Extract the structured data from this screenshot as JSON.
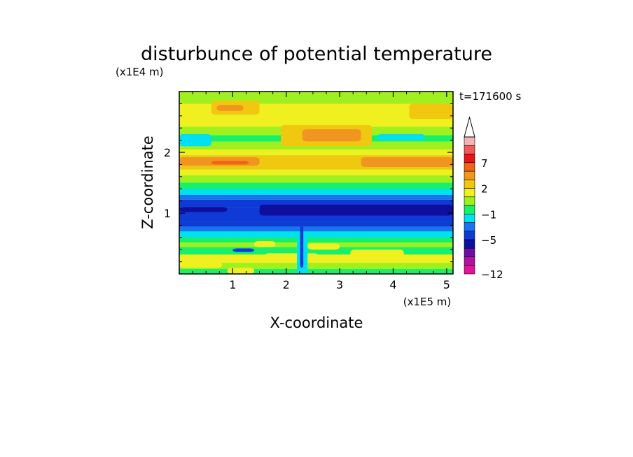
{
  "chart_data": {
    "type": "heatmap",
    "title": "disturbunce of potential temperature",
    "xlabel": "X-coordinate",
    "ylabel": "Z-coordinate",
    "x_unit": "(x1E5 m)",
    "y_unit": "(x1E4 m)",
    "annotation": "t=171600 s",
    "xlim": [
      0,
      5.12
    ],
    "ylim": [
      0,
      3.0
    ],
    "x_ticks": [
      1,
      2,
      3,
      4,
      5
    ],
    "x_tick_labels": [
      "1",
      "2",
      "3",
      "4",
      "5"
    ],
    "y_ticks": [
      1,
      2
    ],
    "y_tick_labels": [
      "1",
      "2"
    ],
    "grid": false,
    "colorbar": {
      "placement": "right",
      "levels": [
        -12,
        -11,
        -9,
        -7,
        -5,
        -3,
        -2,
        -1,
        0,
        1,
        2,
        3,
        5,
        7,
        9,
        11
      ],
      "colors": [
        "#e0139b",
        "#b0129f",
        "#6c0fa6",
        "#0f0f9f",
        "#0f3ad6",
        "#1a73f0",
        "#00e0f0",
        "#17f06a",
        "#a0f020",
        "#f0f020",
        "#f0c810",
        "#f09620",
        "#f06418",
        "#e61414",
        "#f05a5a",
        "#f5b4b4"
      ],
      "labels": [
        {
          "value": 7,
          "text": "7"
        },
        {
          "value": 2,
          "text": "2"
        },
        {
          "value": -1,
          "text": "−1"
        },
        {
          "value": -5,
          "text": "−5"
        },
        {
          "value": -12,
          "text": "−12"
        }
      ],
      "extend_top": true
    },
    "bands": [
      {
        "z0": 0.0,
        "z1": 0.08,
        "color": "#17f06a"
      },
      {
        "z0": 0.08,
        "z1": 0.18,
        "color": "#a0f020"
      },
      {
        "z0": 0.18,
        "z1": 0.32,
        "color": "#f0f020"
      },
      {
        "z0": 0.32,
        "z1": 0.44,
        "color": "#17f06a"
      },
      {
        "z0": 0.44,
        "z1": 0.52,
        "color": "#a0f020"
      },
      {
        "z0": 0.52,
        "z1": 0.6,
        "color": "#17f06a"
      },
      {
        "z0": 0.6,
        "z1": 0.7,
        "color": "#00e0f0"
      },
      {
        "z0": 0.7,
        "z1": 0.78,
        "color": "#1a73f0"
      },
      {
        "z0": 0.78,
        "z1": 0.86,
        "color": "#0f3ad6"
      },
      {
        "z0": 0.86,
        "z1": 1.1,
        "color": "#0f3ad6"
      },
      {
        "z0": 1.1,
        "z1": 1.22,
        "color": "#0f3ad6"
      },
      {
        "z0": 1.22,
        "z1": 1.3,
        "color": "#1a73f0"
      },
      {
        "z0": 1.3,
        "z1": 1.4,
        "color": "#00e0f0"
      },
      {
        "z0": 1.4,
        "z1": 1.5,
        "color": "#17f06a"
      },
      {
        "z0": 1.5,
        "z1": 1.62,
        "color": "#a0f020"
      },
      {
        "z0": 1.62,
        "z1": 1.72,
        "color": "#f0f020"
      },
      {
        "z0": 1.72,
        "z1": 1.95,
        "color": "#f0c810"
      },
      {
        "z0": 1.95,
        "z1": 2.05,
        "color": "#f0f020"
      },
      {
        "z0": 2.05,
        "z1": 2.18,
        "color": "#a0f020"
      },
      {
        "z0": 2.18,
        "z1": 2.28,
        "color": "#17f06a"
      },
      {
        "z0": 2.28,
        "z1": 2.42,
        "color": "#a0f020"
      },
      {
        "z0": 2.42,
        "z1": 2.58,
        "color": "#f0f020"
      },
      {
        "z0": 2.58,
        "z1": 2.8,
        "color": "#f0f020"
      },
      {
        "z0": 2.8,
        "z1": 3.0,
        "color": "#a0f020"
      }
    ],
    "patches": [
      {
        "x0": 0.0,
        "x1": 1.5,
        "z0": 1.78,
        "z1": 1.92,
        "color": "#f09620"
      },
      {
        "x0": 0.6,
        "x1": 1.3,
        "z0": 1.8,
        "z1": 1.86,
        "color": "#f06418"
      },
      {
        "x0": 3.4,
        "x1": 5.12,
        "z0": 1.76,
        "z1": 1.92,
        "color": "#f09620"
      },
      {
        "x0": 1.9,
        "x1": 3.6,
        "z0": 2.1,
        "z1": 2.45,
        "color": "#f0c810"
      },
      {
        "x0": 2.3,
        "x1": 3.4,
        "z0": 2.18,
        "z1": 2.38,
        "color": "#f09620"
      },
      {
        "x0": 0.6,
        "x1": 1.5,
        "z0": 2.62,
        "z1": 2.85,
        "color": "#f0c810"
      },
      {
        "x0": 0.7,
        "x1": 1.2,
        "z0": 2.68,
        "z1": 2.78,
        "color": "#f09620"
      },
      {
        "x0": 4.3,
        "x1": 5.12,
        "z0": 2.55,
        "z1": 2.8,
        "color": "#f0c810"
      },
      {
        "x0": 1.6,
        "x1": 3.6,
        "z0": 2.55,
        "z1": 2.75,
        "color": "#f0f020"
      },
      {
        "x0": 0.0,
        "x1": 0.6,
        "z0": 2.1,
        "z1": 2.3,
        "color": "#00e0f0"
      },
      {
        "x0": 3.7,
        "x1": 4.6,
        "z0": 2.2,
        "z1": 2.3,
        "color": "#00e0f0"
      },
      {
        "x0": 1.5,
        "x1": 5.12,
        "z0": 0.96,
        "z1": 1.14,
        "color": "#0f0f9f"
      },
      {
        "x0": 0.0,
        "x1": 0.9,
        "z0": 1.02,
        "z1": 1.1,
        "color": "#0f0f9f"
      },
      {
        "x0": 0.0,
        "x1": 0.8,
        "z0": 0.1,
        "z1": 0.28,
        "color": "#f0f020"
      },
      {
        "x0": 1.6,
        "x1": 2.6,
        "z0": 0.2,
        "z1": 0.34,
        "color": "#f0f020"
      },
      {
        "x0": 3.2,
        "x1": 4.2,
        "z0": 0.25,
        "z1": 0.4,
        "color": "#f0f020"
      },
      {
        "x0": 2.4,
        "x1": 3.0,
        "z0": 0.4,
        "z1": 0.5,
        "color": "#f0f020"
      },
      {
        "x0": 1.4,
        "x1": 1.8,
        "z0": 0.44,
        "z1": 0.54,
        "color": "#f0f020"
      },
      {
        "x0": 0.9,
        "x1": 1.4,
        "z0": 0.0,
        "z1": 0.1,
        "color": "#f0f020"
      },
      {
        "x0": 2.2,
        "x1": 2.4,
        "z0": 0.0,
        "z1": 0.6,
        "color": "#00e0f0"
      },
      {
        "x0": 1.0,
        "x1": 1.4,
        "z0": 0.36,
        "z1": 0.42,
        "color": "#0f3ad6"
      },
      {
        "x0": 2.26,
        "x1": 2.32,
        "z0": 0.1,
        "z1": 0.8,
        "color": "#0f3ad6"
      }
    ]
  }
}
